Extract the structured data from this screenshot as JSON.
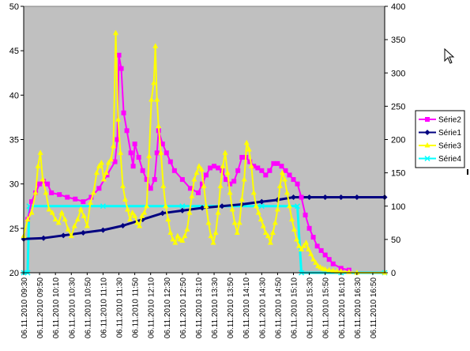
{
  "chart_data": {
    "type": "line",
    "title": "",
    "xlabel": "",
    "ylabel_left": "",
    "ylabel_right": "",
    "ylim_left": [
      20,
      50
    ],
    "ylim_right": [
      0,
      400
    ],
    "yticks_left": [
      "20",
      "25",
      "30",
      "35",
      "40",
      "45",
      "50"
    ],
    "yticks_right": [
      "0",
      "50",
      "100",
      "150",
      "200",
      "250",
      "300",
      "350",
      "400"
    ],
    "grid": false,
    "plot_background": "#c0c0c0",
    "legend_position": "right",
    "x_labels": [
      "06.11.2010 09:30",
      "06.11.2010 09:50",
      "06.11.2010 10:10",
      "06.11.2010 10:30",
      "06.11.2010 10:50",
      "06.11.2010 11:10",
      "06.11.2010 11:30",
      "06.11.2010 11:50",
      "06.11.2010 12:10",
      "06.11.2010 12:30",
      "06.11.2010 12:50",
      "06.11.2010 13:10",
      "06.11.2010 13:30",
      "06.11.2010 13:50",
      "06.11.2010 14:10",
      "06.11.2010 14:30",
      "06.11.2010 14:50",
      "06.11.2010 15:10",
      "06.11.2010 15:30",
      "06.11.2010 15:50",
      "06.11.2010 16:10",
      "06.11.2010 16:30",
      "06.11.2010 16:50"
    ],
    "x_range_minutes": [
      0,
      455
    ],
    "series": [
      {
        "name": "Série2",
        "axis": "left",
        "color": "#ff00ff",
        "marker": "square",
        "points": [
          [
            5,
            26
          ],
          [
            10,
            28
          ],
          [
            15,
            29
          ],
          [
            20,
            30
          ],
          [
            25,
            30.3
          ],
          [
            30,
            30
          ],
          [
            35,
            29
          ],
          [
            45,
            28.8
          ],
          [
            55,
            28.5
          ],
          [
            65,
            28.3
          ],
          [
            75,
            28
          ],
          [
            85,
            28.5
          ],
          [
            95,
            29.5
          ],
          [
            105,
            31
          ],
          [
            115,
            32.5
          ],
          [
            118,
            35
          ],
          [
            120,
            44.5
          ],
          [
            123,
            43
          ],
          [
            126,
            38
          ],
          [
            130,
            36
          ],
          [
            135,
            33.5
          ],
          [
            138,
            32
          ],
          [
            140,
            34.5
          ],
          [
            145,
            33
          ],
          [
            150,
            31.5
          ],
          [
            155,
            30.5
          ],
          [
            160,
            29.5
          ],
          [
            165,
            30.5
          ],
          [
            168,
            33.5
          ],
          [
            170,
            36
          ],
          [
            175,
            34.5
          ],
          [
            180,
            33.5
          ],
          [
            185,
            32.5
          ],
          [
            190,
            31.5
          ],
          [
            200,
            30.5
          ],
          [
            210,
            29.5
          ],
          [
            220,
            29
          ],
          [
            225,
            30
          ],
          [
            230,
            31
          ],
          [
            235,
            31.8
          ],
          [
            240,
            32
          ],
          [
            245,
            31.8
          ],
          [
            250,
            31.5
          ],
          [
            255,
            30.5
          ],
          [
            260,
            30
          ],
          [
            265,
            30.3
          ],
          [
            270,
            31.5
          ],
          [
            275,
            33
          ],
          [
            280,
            33
          ],
          [
            285,
            32.5
          ],
          [
            290,
            32
          ],
          [
            295,
            31.8
          ],
          [
            300,
            31.5
          ],
          [
            305,
            31
          ],
          [
            310,
            31.5
          ],
          [
            315,
            32.3
          ],
          [
            320,
            32.3
          ],
          [
            325,
            32
          ],
          [
            330,
            31.5
          ],
          [
            335,
            31
          ],
          [
            340,
            30.5
          ],
          [
            345,
            30
          ],
          [
            350,
            28.5
          ],
          [
            355,
            26.5
          ],
          [
            360,
            25
          ],
          [
            365,
            24
          ],
          [
            370,
            23
          ],
          [
            375,
            22.5
          ],
          [
            380,
            22
          ],
          [
            385,
            21.5
          ],
          [
            390,
            21
          ],
          [
            400,
            20.5
          ],
          [
            410,
            20.3
          ]
        ]
      },
      {
        "name": "Série1",
        "axis": "left",
        "color": "#000080",
        "marker": "diamond",
        "points": [
          [
            0,
            23.8
          ],
          [
            25,
            23.9
          ],
          [
            50,
            24.2
          ],
          [
            75,
            24.5
          ],
          [
            100,
            24.8
          ],
          [
            125,
            25.3
          ],
          [
            150,
            26
          ],
          [
            175,
            26.7
          ],
          [
            200,
            27
          ],
          [
            225,
            27.3
          ],
          [
            250,
            27.5
          ],
          [
            275,
            27.7
          ],
          [
            300,
            28
          ],
          [
            320,
            28.2
          ],
          [
            340,
            28.5
          ],
          [
            360,
            28.5
          ],
          [
            380,
            28.5
          ],
          [
            400,
            28.5
          ],
          [
            420,
            28.5
          ],
          [
            455,
            28.5
          ]
        ]
      },
      {
        "name": "Série3",
        "axis": "right",
        "color": "#ffff00",
        "marker": "triangle",
        "points": [
          [
            0,
            55
          ],
          [
            5,
            80
          ],
          [
            10,
            90
          ],
          [
            15,
            120
          ],
          [
            18,
            160
          ],
          [
            21,
            180
          ],
          [
            24,
            140
          ],
          [
            28,
            120
          ],
          [
            32,
            95
          ],
          [
            36,
            90
          ],
          [
            40,
            80
          ],
          [
            44,
            75
          ],
          [
            48,
            90
          ],
          [
            52,
            80
          ],
          [
            56,
            65
          ],
          [
            60,
            55
          ],
          [
            64,
            70
          ],
          [
            68,
            80
          ],
          [
            72,
            95
          ],
          [
            76,
            85
          ],
          [
            80,
            70
          ],
          [
            84,
            105
          ],
          [
            88,
            120
          ],
          [
            92,
            150
          ],
          [
            95,
            160
          ],
          [
            98,
            165
          ],
          [
            101,
            140
          ],
          [
            104,
            150
          ],
          [
            107,
            165
          ],
          [
            110,
            170
          ],
          [
            113,
            190
          ],
          [
            116,
            360
          ],
          [
            119,
            230
          ],
          [
            122,
            180
          ],
          [
            125,
            130
          ],
          [
            128,
            110
          ],
          [
            131,
            95
          ],
          [
            134,
            80
          ],
          [
            137,
            90
          ],
          [
            140,
            85
          ],
          [
            143,
            75
          ],
          [
            146,
            70
          ],
          [
            149,
            85
          ],
          [
            152,
            90
          ],
          [
            155,
            100
          ],
          [
            158,
            175
          ],
          [
            161,
            260
          ],
          [
            164,
            285
          ],
          [
            166,
            340
          ],
          [
            168,
            260
          ],
          [
            170,
            220
          ],
          [
            173,
            180
          ],
          [
            176,
            130
          ],
          [
            179,
            100
          ],
          [
            182,
            80
          ],
          [
            185,
            60
          ],
          [
            188,
            50
          ],
          [
            191,
            45
          ],
          [
            194,
            55
          ],
          [
            197,
            50
          ],
          [
            200,
            48
          ],
          [
            203,
            55
          ],
          [
            206,
            65
          ],
          [
            209,
            90
          ],
          [
            212,
            115
          ],
          [
            215,
            140
          ],
          [
            218,
            150
          ],
          [
            221,
            160
          ],
          [
            224,
            155
          ],
          [
            227,
            130
          ],
          [
            230,
            100
          ],
          [
            233,
            75
          ],
          [
            236,
            55
          ],
          [
            239,
            45
          ],
          [
            242,
            60
          ],
          [
            245,
            90
          ],
          [
            248,
            130
          ],
          [
            251,
            160
          ],
          [
            254,
            180
          ],
          [
            257,
            150
          ],
          [
            260,
            120
          ],
          [
            263,
            95
          ],
          [
            266,
            75
          ],
          [
            269,
            60
          ],
          [
            272,
            75
          ],
          [
            275,
            110
          ],
          [
            278,
            140
          ],
          [
            281,
            195
          ],
          [
            284,
            185
          ],
          [
            287,
            160
          ],
          [
            290,
            120
          ],
          [
            293,
            100
          ],
          [
            296,
            90
          ],
          [
            299,
            80
          ],
          [
            302,
            70
          ],
          [
            305,
            60
          ],
          [
            308,
            55
          ],
          [
            311,
            45
          ],
          [
            314,
            60
          ],
          [
            317,
            75
          ],
          [
            320,
            95
          ],
          [
            323,
            130
          ],
          [
            326,
            150
          ],
          [
            329,
            140
          ],
          [
            332,
            120
          ],
          [
            335,
            100
          ],
          [
            338,
            80
          ],
          [
            341,
            65
          ],
          [
            344,
            50
          ],
          [
            347,
            40
          ],
          [
            350,
            35
          ],
          [
            353,
            40
          ],
          [
            356,
            45
          ],
          [
            359,
            35
          ],
          [
            362,
            28
          ],
          [
            365,
            20
          ],
          [
            368,
            15
          ],
          [
            371,
            10
          ],
          [
            374,
            8
          ],
          [
            377,
            6
          ],
          [
            380,
            5
          ],
          [
            385,
            4
          ],
          [
            390,
            3
          ],
          [
            395,
            2
          ],
          [
            400,
            2
          ],
          [
            410,
            1
          ],
          [
            420,
            0
          ],
          [
            455,
            0
          ]
        ]
      },
      {
        "name": "Série4",
        "axis": "right",
        "color": "#00ffff",
        "marker": "x",
        "points": [
          [
            0,
            0
          ],
          [
            5,
            0
          ],
          [
            7,
            100
          ],
          [
            100,
            100
          ],
          [
            200,
            100
          ],
          [
            300,
            100
          ],
          [
            345,
            100
          ],
          [
            350,
            0
          ],
          [
            400,
            0
          ],
          [
            455,
            0
          ]
        ]
      }
    ]
  }
}
